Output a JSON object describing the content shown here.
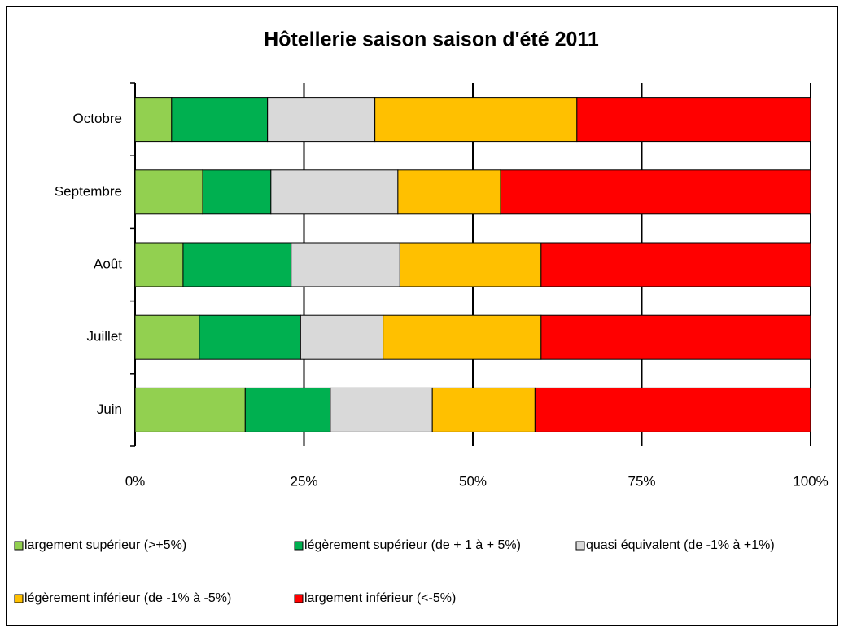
{
  "chart_data": {
    "type": "stacked-bar-horizontal",
    "title": "Hôtellerie saison saison d'été 2011",
    "categories": [
      "Juin",
      "Juillet",
      "Août",
      "Septembre",
      "Octobre"
    ],
    "series": [
      {
        "name": "largement supérieur (>+5%)",
        "color": "#92d050",
        "values": [
          16.3,
          9.5,
          7.1,
          10.0,
          5.4
        ]
      },
      {
        "name": "légèrement supérieur (de + 1 à + 5%)",
        "color": "#00b050",
        "values": [
          12.6,
          15.0,
          16.0,
          10.1,
          14.2
        ]
      },
      {
        "name": "quasi équivalent (de  -1% à +1%)",
        "color": "#d9d9d9",
        "values": [
          15.1,
          12.2,
          16.1,
          18.8,
          15.9
        ]
      },
      {
        "name": "légèrement inférieur (de -1% à -5%)",
        "color": "#ffc000",
        "values": [
          15.2,
          23.4,
          20.9,
          15.2,
          29.9
        ]
      },
      {
        "name": "largement inférieur (<-5%)",
        "color": "#ff0000",
        "values": [
          40.8,
          39.9,
          39.9,
          45.9,
          34.6
        ]
      }
    ],
    "xlim": [
      0,
      100
    ],
    "xticks": [
      {
        "value": 0,
        "label": "0%"
      },
      {
        "value": 25,
        "label": "25%"
      },
      {
        "value": 50,
        "label": "50%"
      },
      {
        "value": 75,
        "label": "75%"
      },
      {
        "value": 100,
        "label": "100%"
      }
    ],
    "grid": true
  }
}
